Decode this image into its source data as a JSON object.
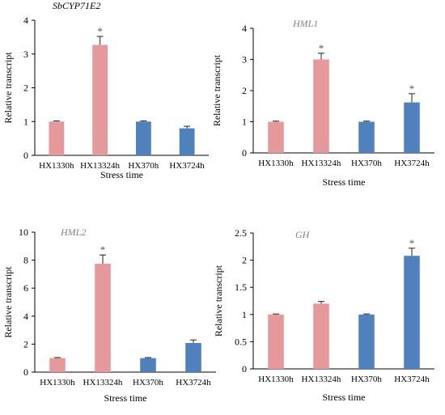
{
  "chart_data": [
    {
      "type": "bar",
      "title": "SbCYP71E2",
      "xlabel": "Stress time",
      "ylabel": "Relative transcript",
      "ylim": [
        0,
        4
      ],
      "yticks": [
        0,
        1,
        2,
        3,
        4
      ],
      "categories": [
        "HX1330h",
        "HX13324h",
        "HX370h",
        "HX3724h"
      ],
      "values": [
        1.0,
        3.27,
        1.0,
        0.8
      ],
      "errors": [
        0.02,
        0.25,
        0.02,
        0.06
      ],
      "significant": [
        false,
        true,
        false,
        false
      ],
      "significance_marker": "*",
      "colors": [
        "#e6999a",
        "#e6999a",
        "#4f81bd",
        "#4f81bd"
      ],
      "title_color": "#000000",
      "grid": false
    },
    {
      "type": "bar",
      "title": "HML1",
      "xlabel": "Stress time",
      "ylabel": "Relative transcript",
      "ylim": [
        0,
        4
      ],
      "yticks": [
        0,
        1,
        2,
        3,
        4
      ],
      "categories": [
        "HX1330h",
        "HX13324h",
        "HX370h",
        "HX3724h"
      ],
      "values": [
        1.0,
        3.0,
        1.0,
        1.62
      ],
      "errors": [
        0.02,
        0.2,
        0.02,
        0.28
      ],
      "significant": [
        false,
        true,
        false,
        true
      ],
      "significance_marker": "*",
      "colors": [
        "#e6999a",
        "#e6999a",
        "#4f81bd",
        "#4f81bd"
      ],
      "title_color": "#808080",
      "grid": false
    },
    {
      "type": "bar",
      "title": "HML2",
      "xlabel": "Stress time",
      "ylabel": "Relative transcript",
      "ylim": [
        0,
        10
      ],
      "yticks": [
        0,
        2,
        4,
        6,
        8,
        10
      ],
      "categories": [
        "HX1330h",
        "HX13324h",
        "HX370h",
        "HX3724h"
      ],
      "values": [
        1.0,
        7.75,
        1.0,
        2.08
      ],
      "errors": [
        0.04,
        0.62,
        0.04,
        0.22
      ],
      "significant": [
        false,
        true,
        false,
        false
      ],
      "significance_marker": "*",
      "colors": [
        "#e6999a",
        "#e6999a",
        "#4f81bd",
        "#4f81bd"
      ],
      "title_color": "#808080",
      "grid": false
    },
    {
      "type": "bar",
      "title": "GH",
      "xlabel": "Stress time",
      "ylabel": "Relative transcript",
      "ylim": [
        0,
        2.5
      ],
      "yticks": [
        0,
        0.5,
        1,
        1.5,
        2,
        2.5
      ],
      "categories": [
        "HX1330h",
        "HX13324h",
        "HX370h",
        "HX3724h"
      ],
      "values": [
        1.0,
        1.2,
        1.0,
        2.08
      ],
      "errors": [
        0.01,
        0.04,
        0.01,
        0.14
      ],
      "significant": [
        false,
        false,
        false,
        true
      ],
      "significance_marker": "*",
      "colors": [
        "#e6999a",
        "#e6999a",
        "#4f81bd",
        "#4f81bd"
      ],
      "title_color": "#808080",
      "grid": false
    }
  ]
}
